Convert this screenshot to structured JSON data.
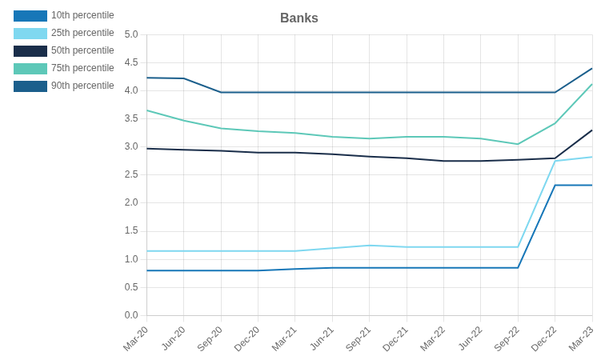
{
  "chart_data": {
    "type": "line",
    "title": "Banks",
    "categories": [
      "Mar-20",
      "Jun-20",
      "Sep-20",
      "Dec-20",
      "Mar-21",
      "Jun-21",
      "Sep-21",
      "Dec-21",
      "Mar-22",
      "Jun-22",
      "Sep-22",
      "Dec-22",
      "Mar-23"
    ],
    "series": [
      {
        "name": "10th percentile",
        "color": "#1777B8",
        "values": [
          0.8,
          0.8,
          0.8,
          0.8,
          0.83,
          0.85,
          0.85,
          0.85,
          0.85,
          0.85,
          0.85,
          2.32,
          2.32
        ]
      },
      {
        "name": "25th percentile",
        "color": "#7FD8F0",
        "values": [
          1.15,
          1.15,
          1.15,
          1.15,
          1.15,
          1.2,
          1.25,
          1.22,
          1.22,
          1.22,
          1.22,
          2.75,
          2.82
        ]
      },
      {
        "name": "50th percentile",
        "color": "#1A2E4A",
        "values": [
          2.97,
          2.95,
          2.93,
          2.9,
          2.9,
          2.87,
          2.83,
          2.8,
          2.75,
          2.75,
          2.77,
          2.8,
          3.3
        ]
      },
      {
        "name": "75th percentile",
        "color": "#5DC8B8",
        "values": [
          3.65,
          3.47,
          3.33,
          3.28,
          3.25,
          3.18,
          3.15,
          3.18,
          3.18,
          3.15,
          3.05,
          3.42,
          4.12
        ]
      },
      {
        "name": "90th percentile",
        "color": "#1B5F8C",
        "values": [
          4.23,
          4.22,
          3.97,
          3.97,
          3.97,
          3.97,
          3.97,
          3.97,
          3.97,
          3.97,
          3.97,
          3.97,
          4.4
        ]
      }
    ],
    "ylim": [
      0.0,
      5.0
    ],
    "yticks": [
      {
        "value": 0,
        "label": "0.0"
      },
      0.5,
      {
        "value": 1,
        "label": "1.0"
      },
      1.5,
      {
        "value": 2,
        "label": "2.0"
      },
      2.5,
      {
        "value": 3,
        "label": "3.0"
      },
      3.5,
      {
        "value": 4,
        "label": "4.0"
      },
      4.5,
      {
        "value": 5,
        "label": "5.0"
      }
    ],
    "grid": true,
    "legend": "left"
  }
}
